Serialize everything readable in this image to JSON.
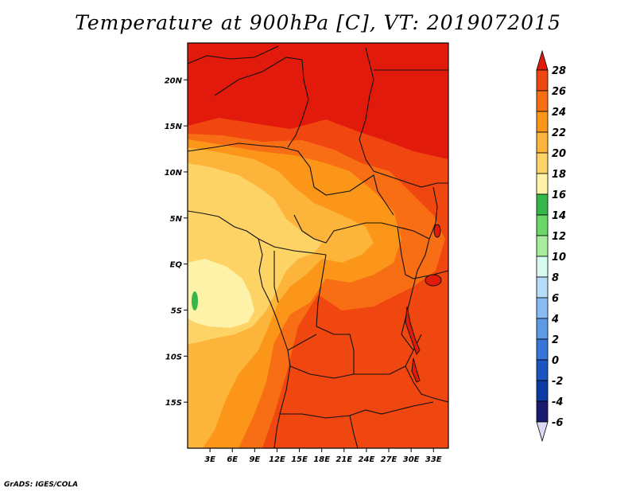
{
  "title": "Temperature at 900hPa [C], VT: 2019072015",
  "credit": "GrADS: IGES/COLA",
  "map": {
    "lon_range": [
      0,
      35
    ],
    "lat_range": [
      -20,
      24
    ],
    "lon_ticks": [
      "3E",
      "6E",
      "9E",
      "12E",
      "15E",
      "18E",
      "21E",
      "24E",
      "27E",
      "30E",
      "33E"
    ],
    "lon_tick_values": [
      3,
      6,
      9,
      12,
      15,
      18,
      21,
      24,
      27,
      30,
      33
    ],
    "lat_ticks": [
      "20N",
      "15N",
      "10N",
      "5N",
      "EQ",
      "5S",
      "10S",
      "15S"
    ],
    "lat_tick_values": [
      20,
      15,
      10,
      5,
      0,
      -5,
      -10,
      -15
    ]
  },
  "colorbar": {
    "labels": [
      "28",
      "26",
      "24",
      "22",
      "20",
      "18",
      "16",
      "14",
      "12",
      "10",
      "8",
      "6",
      "4",
      "2",
      "0",
      "-2",
      "-4",
      "-6"
    ],
    "colors": [
      "#e11a0c",
      "#f0460f",
      "#f86e14",
      "#fb9619",
      "#fcb43a",
      "#fdd366",
      "#fef2a8",
      "#36b74a",
      "#6cd668",
      "#a6ee9d",
      "#d6faf0",
      "#b7dcf9",
      "#88bbf2",
      "#5d9be8",
      "#3676d8",
      "#1d55c0",
      "#0d3ba4",
      "#1a1a6e"
    ]
  }
}
